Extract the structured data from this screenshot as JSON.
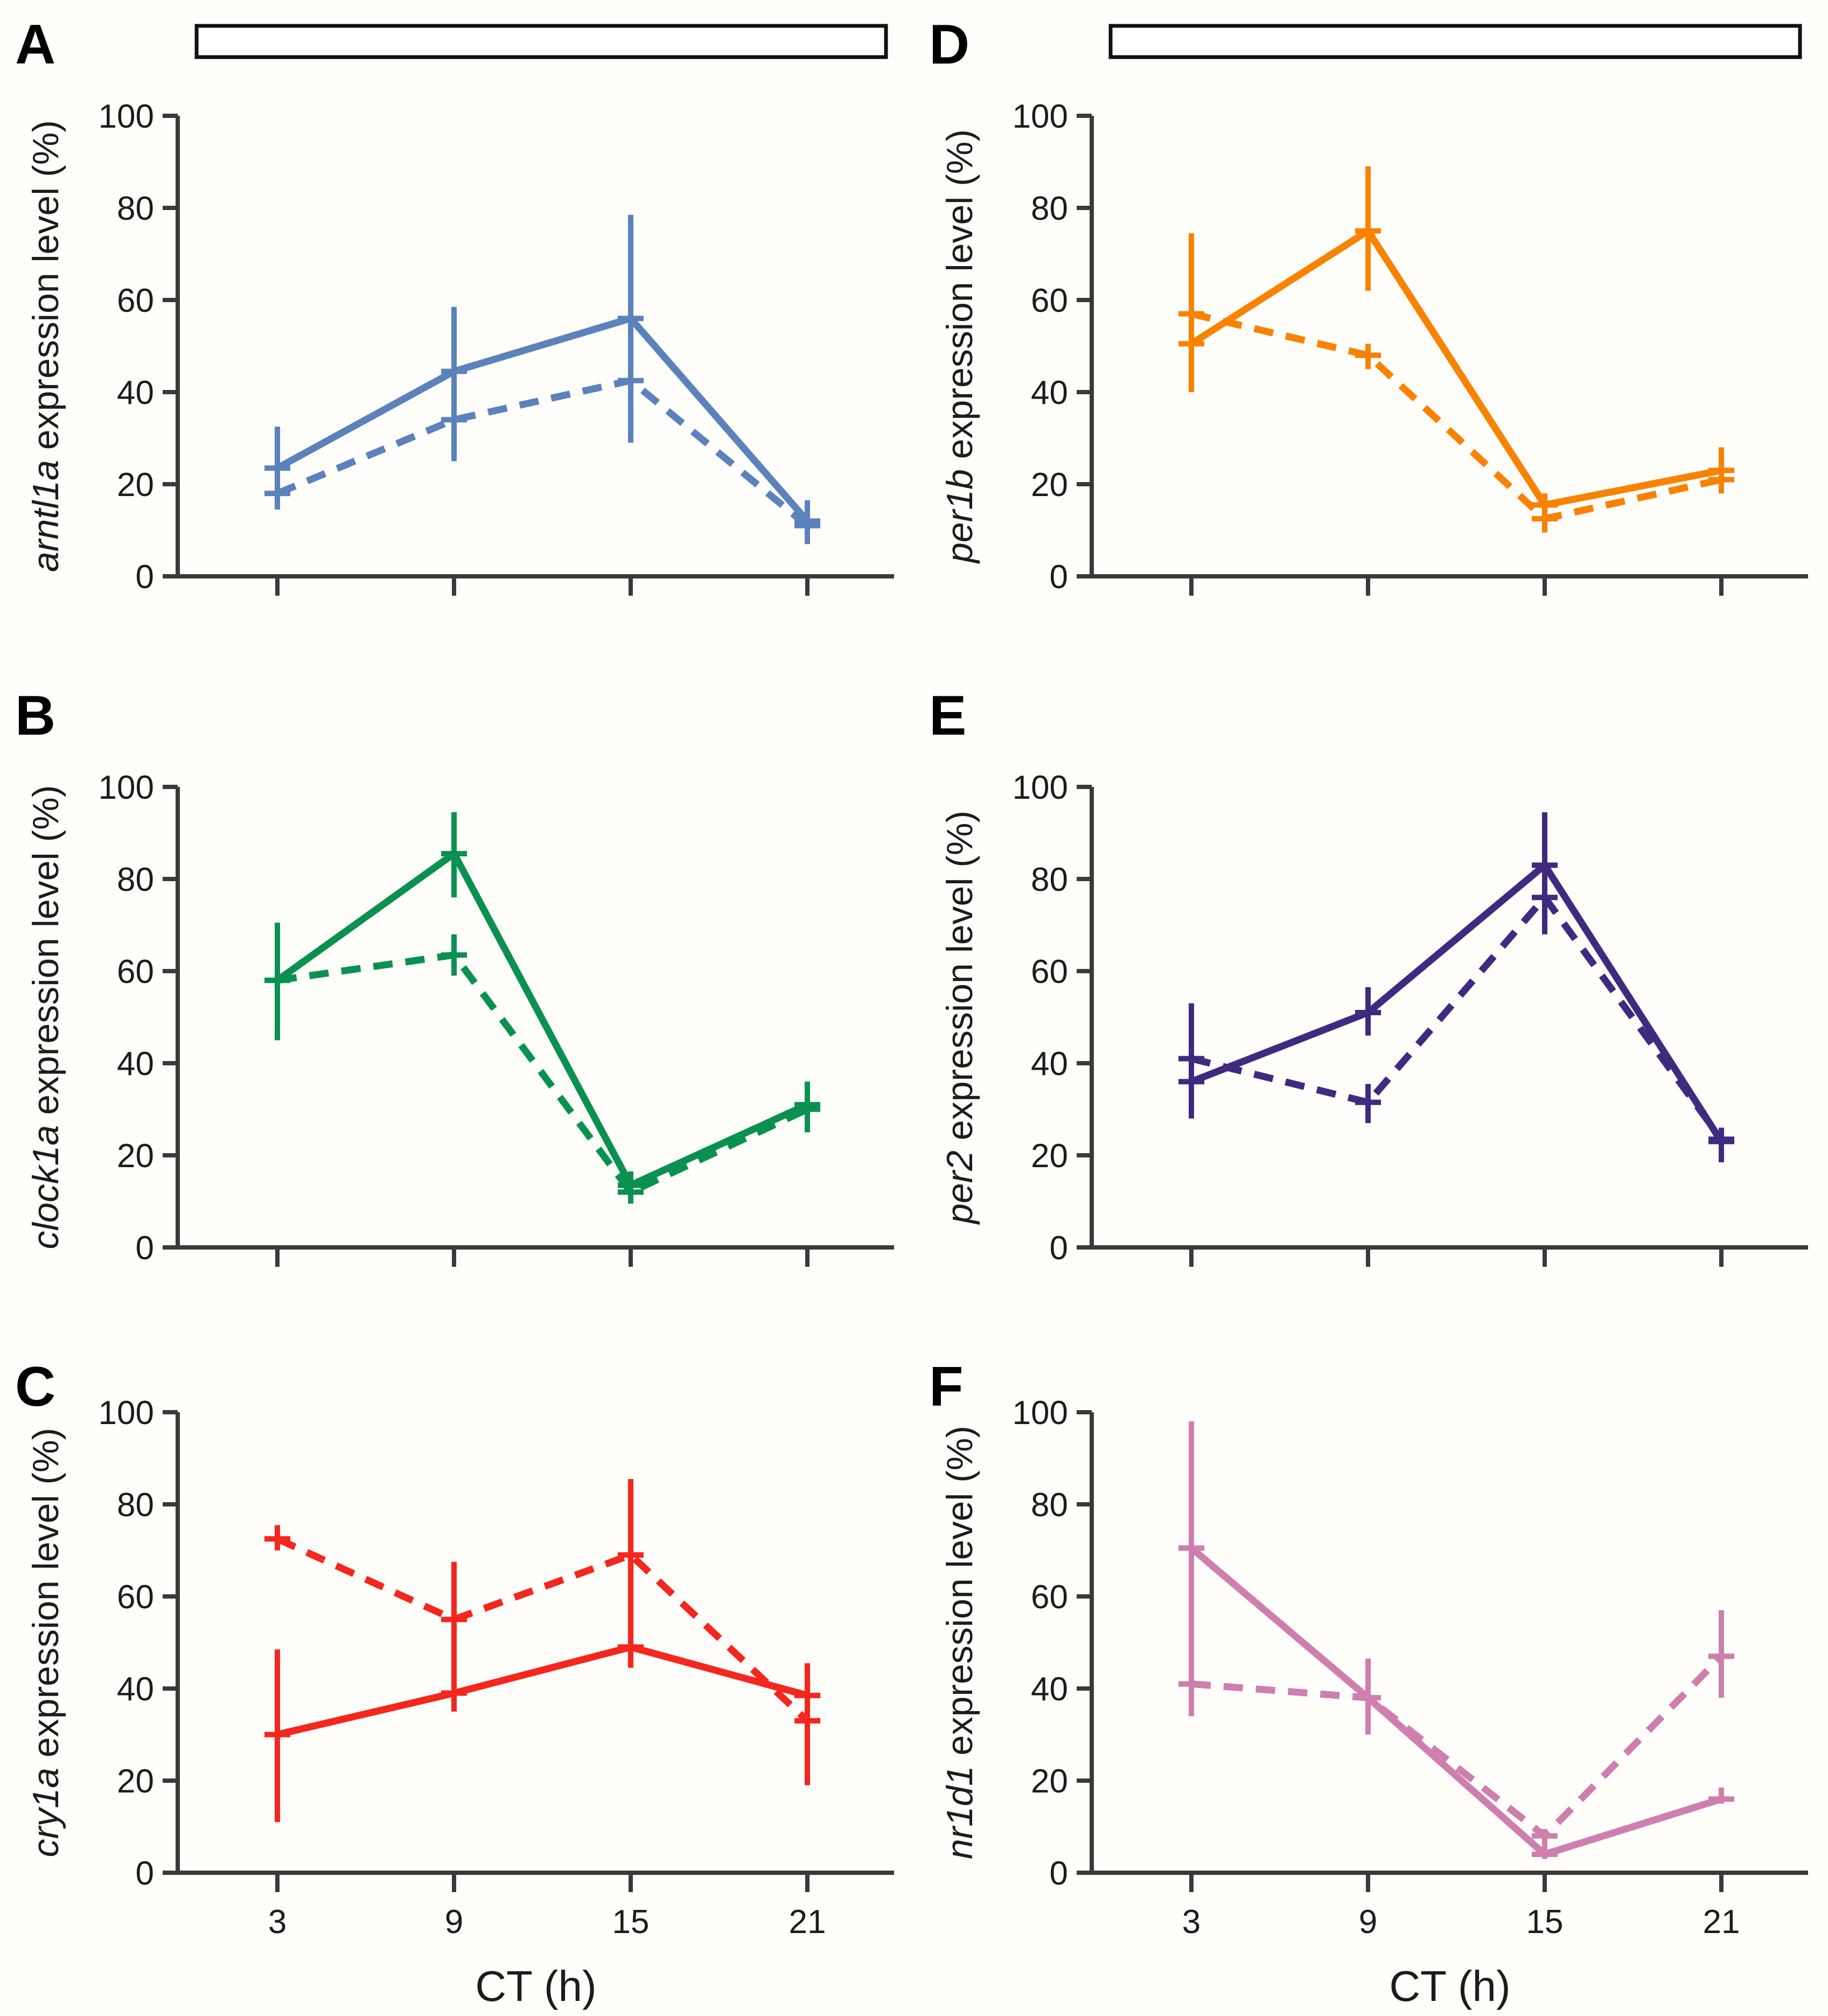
{
  "figure": {
    "background": "#fffefb",
    "axis_color": "#3a3a3a",
    "text_color": "#1c1c1c",
    "xlabel": "CT (h)",
    "x_tick_labels": [
      "3",
      "9",
      "15",
      "21"
    ],
    "y_tick_labels": [
      "0",
      "20",
      "40",
      "60",
      "80",
      "100"
    ]
  },
  "chart_data": [
    {
      "type": "line",
      "panel_label": "A",
      "gene": "arntl1a",
      "ylabel_rest": " expression level (%)",
      "xlabel": "CT (h)",
      "x": [
        3,
        9,
        15,
        21
      ],
      "ylim": [
        0,
        100
      ],
      "y_ticks": [
        0,
        20,
        40,
        60,
        80,
        100
      ],
      "color": "#5b82bb",
      "top_bar": true,
      "x_labels_visible": false,
      "legend": "none",
      "series": [
        {
          "name": "solid",
          "style": "solid",
          "values": [
            23.5,
            44.5,
            56,
            12
          ],
          "err_lo": [
            14.5,
            25,
            29,
            7
          ],
          "err_hi": [
            32.5,
            58.5,
            78.5,
            16.5
          ]
        },
        {
          "name": "dashed",
          "style": "dashed",
          "values": [
            18,
            34,
            42.5,
            11
          ],
          "err_lo": [
            14.5,
            25,
            29,
            7
          ],
          "err_hi": [
            32.5,
            58.5,
            78.5,
            16.5
          ]
        }
      ]
    },
    {
      "type": "line",
      "panel_label": "B",
      "gene": "clock1a",
      "ylabel_rest": " expression level (%)",
      "xlabel": "CT (h)",
      "x": [
        3,
        9,
        15,
        21
      ],
      "ylim": [
        0,
        100
      ],
      "y_ticks": [
        0,
        20,
        40,
        60,
        80,
        100
      ],
      "color": "#0a9150",
      "top_bar": false,
      "x_labels_visible": false,
      "legend": "none",
      "series": [
        {
          "name": "solid",
          "style": "solid",
          "values": [
            58,
            85.5,
            13.5,
            31
          ],
          "err_lo": [
            45,
            76,
            10,
            25
          ],
          "err_hi": [
            70.5,
            94.5,
            16.5,
            36
          ]
        },
        {
          "name": "dashed",
          "style": "dashed",
          "values": [
            58,
            63.5,
            12,
            30
          ],
          "err_lo": [
            45,
            59,
            9.5,
            25
          ],
          "err_hi": [
            70.5,
            68,
            14.5,
            36
          ]
        }
      ]
    },
    {
      "type": "line",
      "panel_label": "C",
      "gene": "cry1a",
      "ylabel_rest": " expression level (%)",
      "xlabel": "CT (h)",
      "x": [
        3,
        9,
        15,
        21
      ],
      "ylim": [
        0,
        100
      ],
      "y_ticks": [
        0,
        20,
        40,
        60,
        80,
        100
      ],
      "color": "#f5261d",
      "top_bar": false,
      "x_labels_visible": true,
      "legend": "none",
      "series": [
        {
          "name": "solid",
          "style": "solid",
          "values": [
            30,
            39,
            49,
            38.5
          ],
          "err_lo": [
            11,
            35,
            44.5,
            19
          ],
          "err_hi": [
            48.5,
            67.5,
            85.5,
            45.5
          ]
        },
        {
          "name": "dashed",
          "style": "dashed",
          "values": [
            72.5,
            55,
            69,
            33
          ],
          "err_lo": [
            70,
            35,
            44.5,
            19
          ],
          "err_hi": [
            75.5,
            67.5,
            85.5,
            45.5
          ]
        }
      ]
    },
    {
      "type": "line",
      "panel_label": "D",
      "gene": "per1b",
      "ylabel_rest": " expression level (%)",
      "xlabel": "CT (h)",
      "x": [
        3,
        9,
        15,
        21
      ],
      "ylim": [
        0,
        100
      ],
      "y_ticks": [
        0,
        20,
        40,
        60,
        80,
        100
      ],
      "color": "#f98200",
      "top_bar": true,
      "x_labels_visible": false,
      "legend": "none",
      "series": [
        {
          "name": "solid",
          "style": "solid",
          "values": [
            50.5,
            75,
            15.5,
            23
          ],
          "err_lo": [
            40,
            62,
            13,
            18
          ],
          "err_hi": [
            74.5,
            89,
            18,
            28
          ]
        },
        {
          "name": "dashed",
          "style": "dashed",
          "values": [
            57,
            48,
            12.5,
            21
          ],
          "err_lo": [
            40,
            45,
            9.5,
            18
          ],
          "err_hi": [
            74.5,
            50.5,
            15,
            28
          ]
        }
      ]
    },
    {
      "type": "line",
      "panel_label": "E",
      "gene": "per2",
      "ylabel_rest": " expression level (%)",
      "xlabel": "CT (h)",
      "x": [
        3,
        9,
        15,
        21
      ],
      "ylim": [
        0,
        100
      ],
      "y_ticks": [
        0,
        20,
        40,
        60,
        80,
        100
      ],
      "color": "#402a80",
      "top_bar": false,
      "x_labels_visible": false,
      "legend": "none",
      "series": [
        {
          "name": "solid",
          "style": "solid",
          "values": [
            36,
            51,
            83,
            23
          ],
          "err_lo": [
            28,
            46,
            68,
            18.5
          ],
          "err_hi": [
            53,
            56.5,
            94.5,
            26
          ]
        },
        {
          "name": "dashed",
          "style": "dashed",
          "values": [
            41,
            31.5,
            76,
            23.5
          ],
          "err_lo": [
            28,
            27,
            68,
            18.5
          ],
          "err_hi": [
            53,
            35.5,
            94.5,
            26
          ]
        }
      ]
    },
    {
      "type": "line",
      "panel_label": "F",
      "gene": "nr1d1",
      "ylabel_rest": " expression level (%)",
      "xlabel": "CT (h)",
      "x": [
        3,
        9,
        15,
        21
      ],
      "ylim": [
        0,
        100
      ],
      "y_ticks": [
        0,
        20,
        40,
        60,
        80,
        100
      ],
      "color": "#ce7fad",
      "top_bar": false,
      "x_labels_visible": true,
      "legend": "none",
      "series": [
        {
          "name": "solid",
          "style": "solid",
          "values": [
            70.5,
            38,
            4,
            16
          ],
          "err_lo": [
            34,
            30,
            3,
            15
          ],
          "err_hi": [
            98,
            46.5,
            9,
            18.5
          ]
        },
        {
          "name": "dashed",
          "style": "dashed",
          "values": [
            41,
            38,
            8,
            47
          ],
          "err_lo": [
            34,
            30,
            5,
            38
          ],
          "err_hi": [
            98,
            46.5,
            9.5,
            57
          ]
        }
      ]
    }
  ]
}
